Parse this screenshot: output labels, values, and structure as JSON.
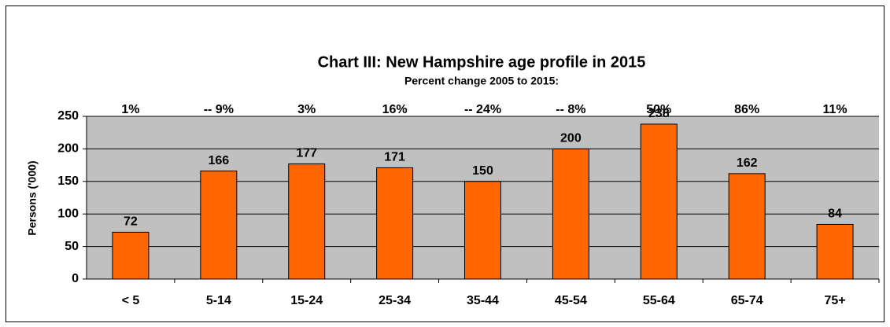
{
  "chart_data": {
    "type": "bar",
    "title": "Chart III: New Hampshire age profile in 2015",
    "subtitle": "Percent change 2005 to 2015:",
    "y_label": "Persons ('000)",
    "categories": [
      "< 5",
      "5-14",
      "15-24",
      "25-34",
      "35-44",
      "45-54",
      "55-64",
      "65-74",
      "75+"
    ],
    "values": [
      72,
      166,
      177,
      171,
      150,
      200,
      238,
      162,
      84
    ],
    "percent_change": {
      "values": [
        1,
        -9,
        3,
        16,
        -24,
        -8,
        50,
        86,
        11
      ],
      "value_labels": [
        "1%",
        "-- 9%",
        "3%",
        "16%",
        "-- 24%",
        "-- 8%",
        "50%",
        "86%",
        "11%"
      ]
    },
    "color": "#ff6600",
    "ylim": [
      0,
      250
    ],
    "yticks": [
      0,
      50,
      100,
      150,
      200,
      250
    ],
    "grid": true
  }
}
